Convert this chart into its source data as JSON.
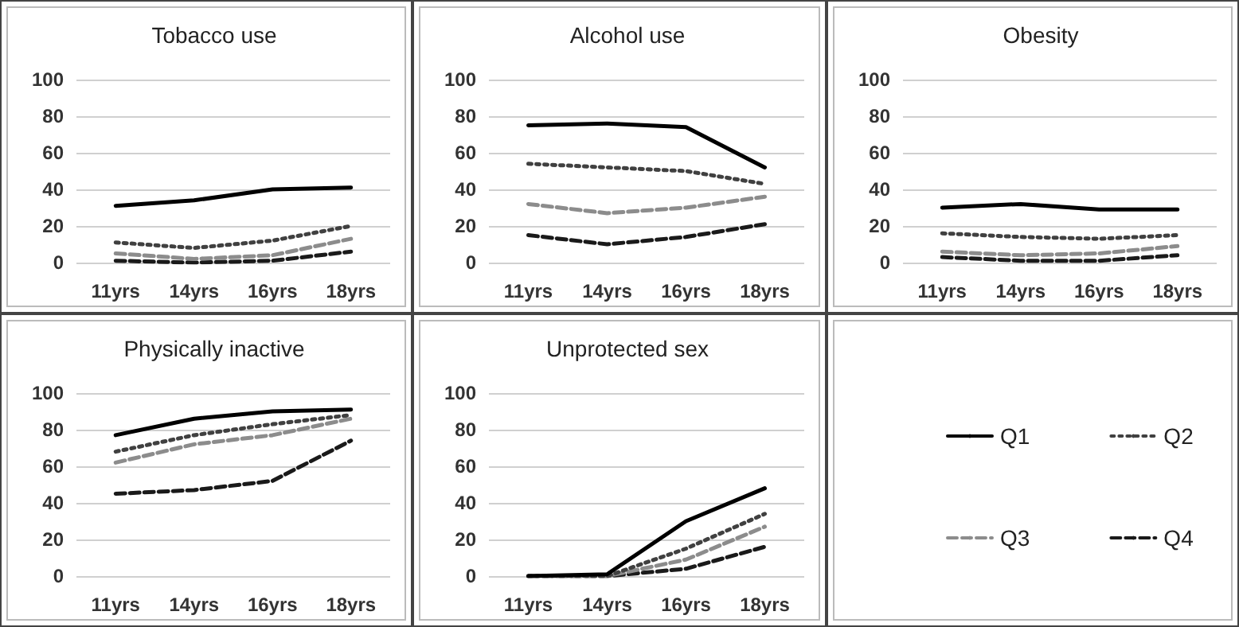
{
  "chart_data": [
    {
      "type": "line",
      "title": "Tobacco use",
      "categories": [
        "11yrs",
        "14yrs",
        "16yrs",
        "18yrs"
      ],
      "ylim": [
        0,
        100
      ],
      "yticks": [
        0,
        20,
        40,
        60,
        80,
        100
      ],
      "grid": "y",
      "marker": "none",
      "legend": false,
      "series": [
        {
          "color": "#000000",
          "line_style": "solid",
          "values": [
            31,
            34,
            40,
            41
          ]
        },
        {
          "color": "#404040",
          "line_style": "dotted",
          "values": [
            11,
            8,
            12,
            20
          ]
        },
        {
          "color": "#8c8c8c",
          "line_style": "dashed",
          "values": [
            5,
            2,
            4,
            13
          ]
        },
        {
          "color": "#1a1a1a",
          "line_style": "dashed",
          "values": [
            1,
            0,
            1,
            6
          ]
        }
      ]
    },
    {
      "type": "line",
      "title": "Alcohol use",
      "categories": [
        "11yrs",
        "14yrs",
        "16yrs",
        "18yrs"
      ],
      "ylim": [
        0,
        100
      ],
      "yticks": [
        0,
        20,
        40,
        60,
        80,
        100
      ],
      "grid": "y",
      "marker": "none",
      "legend": false,
      "series": [
        {
          "color": "#000000",
          "line_style": "solid",
          "values": [
            75,
            76,
            74,
            52
          ]
        },
        {
          "color": "#404040",
          "line_style": "dotted",
          "values": [
            54,
            52,
            50,
            43
          ]
        },
        {
          "color": "#8c8c8c",
          "line_style": "dashed",
          "values": [
            32,
            27,
            30,
            36
          ]
        },
        {
          "color": "#1a1a1a",
          "line_style": "dashed",
          "values": [
            15,
            10,
            14,
            21
          ]
        }
      ]
    },
    {
      "type": "line",
      "title": "Obesity",
      "categories": [
        "11yrs",
        "14yrs",
        "16yrs",
        "18yrs"
      ],
      "ylim": [
        0,
        100
      ],
      "yticks": [
        0,
        20,
        40,
        60,
        80,
        100
      ],
      "grid": "y",
      "marker": "none",
      "legend": false,
      "series": [
        {
          "color": "#000000",
          "line_style": "solid",
          "values": [
            30,
            32,
            29,
            29
          ]
        },
        {
          "color": "#404040",
          "line_style": "dotted",
          "values": [
            16,
            14,
            13,
            15
          ]
        },
        {
          "color": "#8c8c8c",
          "line_style": "dashed",
          "values": [
            6,
            4,
            5,
            9
          ]
        },
        {
          "color": "#1a1a1a",
          "line_style": "dashed",
          "values": [
            3,
            1,
            1,
            4
          ]
        }
      ]
    },
    {
      "type": "line",
      "title": "Physically inactive",
      "categories": [
        "11yrs",
        "14yrs",
        "16yrs",
        "18yrs"
      ],
      "ylim": [
        0,
        100
      ],
      "yticks": [
        0,
        20,
        40,
        60,
        80,
        100
      ],
      "grid": "y",
      "marker": "none",
      "legend": false,
      "series": [
        {
          "color": "#000000",
          "line_style": "solid",
          "values": [
            77,
            86,
            90,
            91
          ]
        },
        {
          "color": "#404040",
          "line_style": "dotted",
          "values": [
            68,
            77,
            83,
            88
          ]
        },
        {
          "color": "#8c8c8c",
          "line_style": "dashed",
          "values": [
            62,
            72,
            77,
            86
          ]
        },
        {
          "color": "#1a1a1a",
          "line_style": "dashed",
          "values": [
            45,
            47,
            52,
            74
          ]
        }
      ]
    },
    {
      "type": "line",
      "title": "Unprotected sex",
      "categories": [
        "11yrs",
        "14yrs",
        "16yrs",
        "18yrs"
      ],
      "ylim": [
        0,
        100
      ],
      "yticks": [
        0,
        20,
        40,
        60,
        80,
        100
      ],
      "grid": "y",
      "marker": "none",
      "legend": "right",
      "series": [
        {
          "name": "Q1",
          "color": "#000000",
          "line_style": "solid",
          "values": [
            0,
            1,
            30,
            48
          ]
        },
        {
          "name": "Q2",
          "color": "#404040",
          "line_style": "dotted",
          "values": [
            0,
            0,
            15,
            34
          ]
        },
        {
          "name": "Q3",
          "color": "#8c8c8c",
          "line_style": "dashed",
          "values": [
            0,
            0,
            9,
            27
          ]
        },
        {
          "name": "Q4",
          "color": "#1a1a1a",
          "line_style": "dashed",
          "values": [
            0,
            0,
            4,
            16
          ]
        }
      ]
    }
  ]
}
